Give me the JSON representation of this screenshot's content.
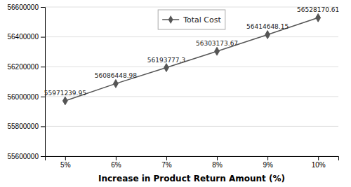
{
  "chart_data": {
    "type": "line",
    "x": [
      5,
      6,
      7,
      8,
      9,
      10
    ],
    "series": [
      {
        "name": "Total Cost",
        "color": "#555555",
        "marker": "diamond",
        "values": [
          55971239.95,
          56086448.98,
          56193777.3,
          56303173.67,
          56414648.15,
          56528170.61
        ]
      }
    ],
    "x_label": "Increase in Product Return Amount (%)",
    "xlim": [
      4.6,
      10.4
    ],
    "xticks": [
      {
        "value": 5,
        "label": "5%"
      },
      {
        "value": 6,
        "label": "6%"
      },
      {
        "value": 7,
        "label": "7%"
      },
      {
        "value": 8,
        "label": "8%"
      },
      {
        "value": 9,
        "label": "9%"
      },
      {
        "value": 10,
        "label": "10%"
      }
    ],
    "ylim": [
      55600000,
      56600000
    ],
    "yticks": [
      55600000,
      55800000,
      56000000,
      56200000,
      56400000,
      56600000
    ],
    "grid": true,
    "legend": "top",
    "data_labels": true
  }
}
